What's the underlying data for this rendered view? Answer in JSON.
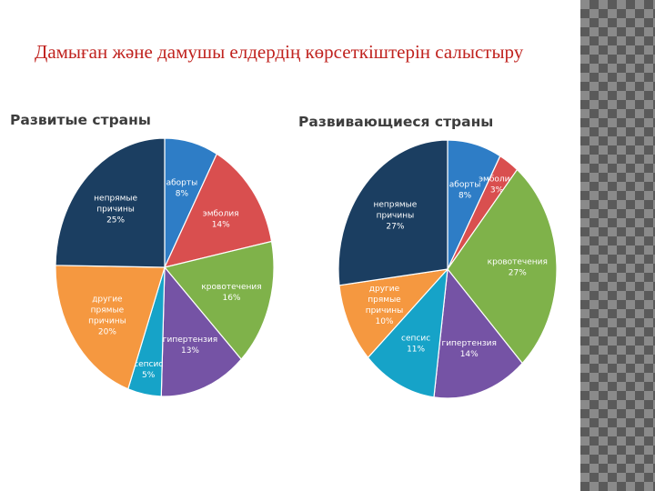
{
  "slide": {
    "title": "Дамыған және дамушы елдердің көрсеткіштерін салыстыру"
  },
  "chart_data": [
    {
      "type": "pie",
      "title": "Развитые страны",
      "start_angle_deg": 0,
      "slices": [
        {
          "label": [
            "аборты"
          ],
          "value": 8,
          "value_label": "8%",
          "color": "#2e7dc6"
        },
        {
          "label": [
            "эмболия"
          ],
          "value": 14,
          "value_label": "14%",
          "color": "#d94f4f"
        },
        {
          "label": [
            "кровотечения"
          ],
          "value": 16,
          "value_label": "16%",
          "color": "#7fb24a"
        },
        {
          "label": [
            "гипертензия"
          ],
          "value": 13,
          "value_label": "13%",
          "color": "#7553a5"
        },
        {
          "label": [
            "сепсис"
          ],
          "value": 5,
          "value_label": "5%",
          "color": "#16a3c8"
        },
        {
          "label": [
            "другие",
            "прямые",
            "причины"
          ],
          "value": 20,
          "value_label": "20%",
          "color": "#f59840"
        },
        {
          "label": [
            "непрямые",
            "причины"
          ],
          "value": 25,
          "value_label": "25%",
          "color": "#1b3e61"
        }
      ]
    },
    {
      "type": "pie",
      "title": "Развивающиеся страны",
      "start_angle_deg": 0,
      "slices": [
        {
          "label": [
            "аборты"
          ],
          "value": 8,
          "value_label": "8%",
          "color": "#2e7dc6"
        },
        {
          "label": [
            "эмболия"
          ],
          "value": 3,
          "value_label": "3%",
          "color": "#d94f4f"
        },
        {
          "label": [
            "кровотечения"
          ],
          "value": 27,
          "value_label": "27%",
          "color": "#7fb24a"
        },
        {
          "label": [
            "гипертензия"
          ],
          "value": 14,
          "value_label": "14%",
          "color": "#7553a5"
        },
        {
          "label": [
            "сепсис"
          ],
          "value": 11,
          "value_label": "11%",
          "color": "#16a3c8"
        },
        {
          "label": [
            "другие",
            "прямые",
            "причины"
          ],
          "value": 10,
          "value_label": "10%",
          "color": "#f59840"
        },
        {
          "label": [
            "непрямые",
            "причины"
          ],
          "value": 27,
          "value_label": "27%",
          "color": "#1b3e61"
        }
      ]
    }
  ]
}
